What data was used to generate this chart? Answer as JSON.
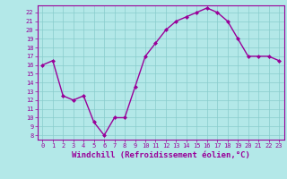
{
  "x": [
    0,
    1,
    2,
    3,
    4,
    5,
    6,
    7,
    8,
    9,
    10,
    11,
    12,
    13,
    14,
    15,
    16,
    17,
    18,
    19,
    20,
    21,
    22,
    23
  ],
  "y": [
    16,
    16.5,
    12.5,
    12,
    12.5,
    9.5,
    8,
    10,
    10,
    13.5,
    17,
    18.5,
    20,
    21,
    21.5,
    22,
    22.5,
    22,
    21,
    19,
    17,
    17,
    17,
    16.5
  ],
  "line_color": "#990099",
  "marker": "D",
  "marker_size": 2,
  "bg_color": "#b3e8e8",
  "grid_color": "#88cccc",
  "xlabel": "Windchill (Refroidissement éolien,°C)",
  "ylim": [
    7.5,
    22.8
  ],
  "xlim": [
    -0.5,
    23.5
  ],
  "yticks": [
    8,
    9,
    10,
    11,
    12,
    13,
    14,
    15,
    16,
    17,
    18,
    19,
    20,
    21,
    22
  ],
  "xticks": [
    0,
    1,
    2,
    3,
    4,
    5,
    6,
    7,
    8,
    9,
    10,
    11,
    12,
    13,
    14,
    15,
    16,
    17,
    18,
    19,
    20,
    21,
    22,
    23
  ],
  "tick_color": "#990099",
  "tick_fontsize": 5,
  "xlabel_fontsize": 6.5,
  "spine_color": "#990099",
  "linewidth": 1.0
}
